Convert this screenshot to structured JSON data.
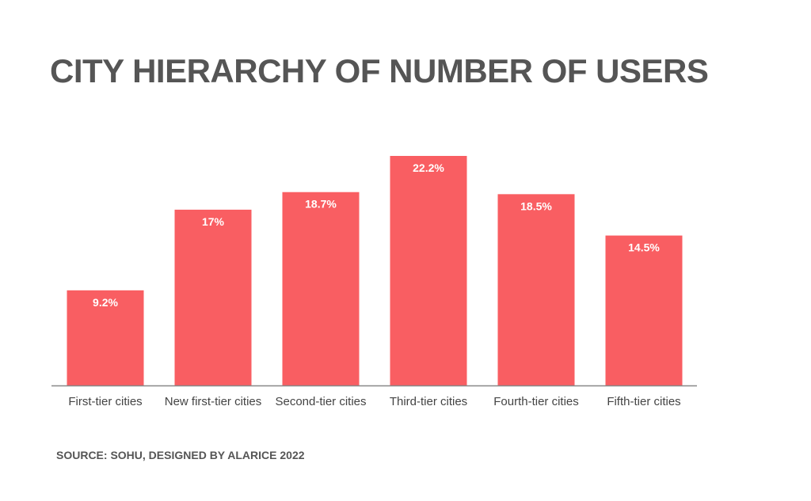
{
  "chart_data": {
    "type": "bar",
    "title": "CITY HIERARCHY OF NUMBER OF USERS",
    "categories": [
      "First-tier cities",
      "New first-tier cities",
      "Second-tier cities",
      "Third-tier cities",
      "Fourth-tier cities",
      "Fifth-tier cities"
    ],
    "values": [
      9.2,
      17,
      18.7,
      22.2,
      18.5,
      14.5
    ],
    "data_labels": [
      "9.2%",
      "17%",
      "18.7%",
      "22.2%",
      "18.5%",
      "14.5%"
    ],
    "ylim": [
      0,
      22.2
    ],
    "grid": false,
    "bar_color": "#F95E62",
    "source": "SOURCE: SOHU, DESIGNED BY ALARICE 2022"
  }
}
